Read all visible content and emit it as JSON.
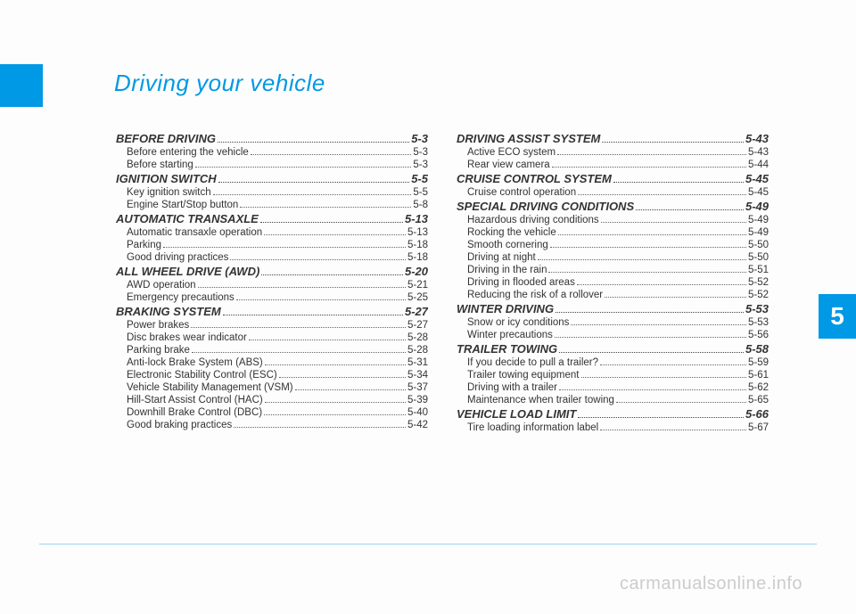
{
  "title": "Driving your vehicle",
  "chapter_tab": "5",
  "watermark": "carmanualsonline.info",
  "col1": [
    {
      "type": "section",
      "label": "BEFORE DRIVING",
      "pg": "5-3"
    },
    {
      "type": "sub",
      "label": "Before entering the vehicle",
      "pg": "5-3"
    },
    {
      "type": "sub",
      "label": "Before starting",
      "pg": "5-3"
    },
    {
      "type": "section",
      "label": "IGNITION SWITCH",
      "pg": "5-5"
    },
    {
      "type": "sub",
      "label": "Key ignition switch",
      "pg": "5-5"
    },
    {
      "type": "sub",
      "label": "Engine Start/Stop button",
      "pg": "5-8"
    },
    {
      "type": "section",
      "label": "AUTOMATIC TRANSAXLE",
      "pg": "5-13"
    },
    {
      "type": "sub",
      "label": "Automatic transaxle operation",
      "pg": "5-13"
    },
    {
      "type": "sub",
      "label": "Parking",
      "pg": "5-18"
    },
    {
      "type": "sub",
      "label": "Good driving practices",
      "pg": "5-18"
    },
    {
      "type": "section",
      "label": "ALL WHEEL DRIVE (AWD)",
      "pg": "5-20"
    },
    {
      "type": "sub",
      "label": "AWD operation",
      "pg": "5-21"
    },
    {
      "type": "sub",
      "label": "Emergency precautions",
      "pg": "5-25"
    },
    {
      "type": "section",
      "label": "BRAKING SYSTEM",
      "pg": "5-27"
    },
    {
      "type": "sub",
      "label": "Power brakes",
      "pg": "5-27"
    },
    {
      "type": "sub",
      "label": "Disc brakes wear indicator",
      "pg": "5-28"
    },
    {
      "type": "sub",
      "label": "Parking brake",
      "pg": "5-28"
    },
    {
      "type": "sub",
      "label": "Anti-lock Brake System (ABS)",
      "pg": "5-31"
    },
    {
      "type": "sub",
      "label": "Electronic Stability Control (ESC)",
      "pg": "5-34"
    },
    {
      "type": "sub",
      "label": "Vehicle Stability Management (VSM)",
      "pg": "5-37"
    },
    {
      "type": "sub",
      "label": "Hill-Start  Assist Control (HAC)",
      "pg": "5-39"
    },
    {
      "type": "sub",
      "label": "Downhill Brake Control (DBC)",
      "pg": "5-40"
    },
    {
      "type": "sub",
      "label": "Good braking practices",
      "pg": "5-42"
    }
  ],
  "col2": [
    {
      "type": "section",
      "label": "DRIVING ASSIST SYSTEM",
      "pg": "5-43"
    },
    {
      "type": "sub",
      "label": "Active ECO system",
      "pg": "5-43"
    },
    {
      "type": "sub",
      "label": "Rear view camera",
      "pg": "5-44"
    },
    {
      "type": "section",
      "label": "CRUISE CONTROL SYSTEM",
      "pg": "5-45"
    },
    {
      "type": "sub",
      "label": "Cruise control operation",
      "pg": "5-45"
    },
    {
      "type": "section",
      "label": "SPECIAL DRIVING CONDITIONS",
      "pg": "5-49"
    },
    {
      "type": "sub",
      "label": "Hazardous driving conditions",
      "pg": "5-49"
    },
    {
      "type": "sub",
      "label": "Rocking the vehicle",
      "pg": "5-49"
    },
    {
      "type": "sub",
      "label": "Smooth cornering",
      "pg": "5-50"
    },
    {
      "type": "sub",
      "label": "Driving at night",
      "pg": "5-50"
    },
    {
      "type": "sub",
      "label": "Driving in the rain",
      "pg": "5-51"
    },
    {
      "type": "sub",
      "label": "Driving in flooded areas",
      "pg": "5-52"
    },
    {
      "type": "sub",
      "label": "Reducing the risk of a rollover",
      "pg": "5-52"
    },
    {
      "type": "section",
      "label": "WINTER DRIVING",
      "pg": "5-53"
    },
    {
      "type": "sub",
      "label": "Snow or icy conditions",
      "pg": "5-53"
    },
    {
      "type": "sub",
      "label": "Winter precautions",
      "pg": "5-56"
    },
    {
      "type": "section",
      "label": "TRAILER TOWING",
      "pg": "5-58"
    },
    {
      "type": "sub",
      "label": "If you decide to pull a trailer?",
      "pg": "5-59"
    },
    {
      "type": "sub",
      "label": "Trailer towing equipment",
      "pg": "5-61"
    },
    {
      "type": "sub",
      "label": "Driving with a trailer",
      "pg": "5-62"
    },
    {
      "type": "sub",
      "label": "Maintenance when trailer towing",
      "pg": "5-65"
    },
    {
      "type": "section",
      "label": "VEHICLE LOAD LIMIT",
      "pg": "5-66"
    },
    {
      "type": "sub",
      "label": "Tire loading information label",
      "pg": "5-67"
    }
  ]
}
